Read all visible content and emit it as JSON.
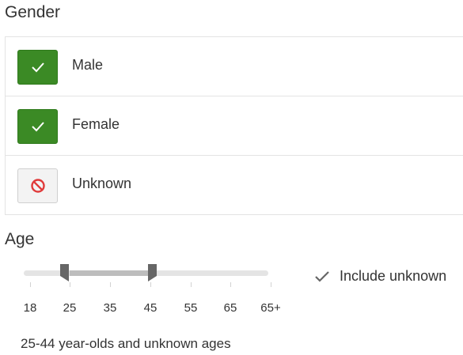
{
  "gender": {
    "title": "Gender",
    "options": [
      {
        "label": "Male",
        "state": "included",
        "icon": "check-icon"
      },
      {
        "label": "Female",
        "state": "included",
        "icon": "check-icon"
      },
      {
        "label": "Unknown",
        "state": "excluded",
        "icon": "prohibited-icon"
      }
    ]
  },
  "age": {
    "title": "Age",
    "ticks": [
      "18",
      "25",
      "35",
      "45",
      "55",
      "65",
      "65+"
    ],
    "range": {
      "from": "25",
      "to": "45"
    },
    "include_unknown": {
      "label": "Include unknown",
      "checked": true,
      "icon": "check-icon"
    },
    "summary": "25-44 year-olds and unknown ages"
  },
  "colors": {
    "included_bg": "#3b8a25",
    "excluded_icon": "#e03a3a",
    "track": "#e4e4e4",
    "track_fill": "#bdbdbd",
    "handle": "#666666"
  }
}
